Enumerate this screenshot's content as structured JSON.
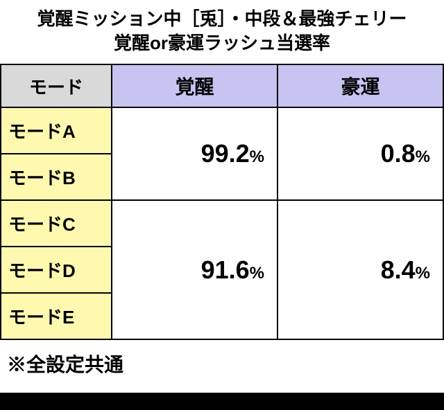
{
  "title": {
    "line1": "覚醒ミッション中［兎］・中段＆最強チェリー",
    "line2": "覚醒or豪運ラッシュ当選率"
  },
  "table": {
    "header_mode": "モード",
    "columns": [
      "覚醒",
      "豪運"
    ],
    "groups": [
      {
        "modes": [
          "モードA",
          "モードB"
        ],
        "values": {
          "kakusei": "99.2",
          "gouun": "0.8"
        }
      },
      {
        "modes": [
          "モードC",
          "モードD",
          "モードE"
        ],
        "values": {
          "kakusei": "91.6",
          "gouun": "8.4"
        }
      }
    ],
    "percent_symbol": "%"
  },
  "footer": "※全設定共通",
  "colors": {
    "mode_header_bg": "#d9d9d9",
    "col_header_bg": "#c7c4f2",
    "mode_cell_bg": "#fff9b0",
    "border": "#000000",
    "background": "#ffffff",
    "text": "#000000"
  },
  "typography": {
    "title_fontsize": 26,
    "header_fontsize": 28,
    "mode_fontsize": 26,
    "value_big_fontsize": 36,
    "value_pct_fontsize": 24,
    "footer_fontsize": 28
  }
}
